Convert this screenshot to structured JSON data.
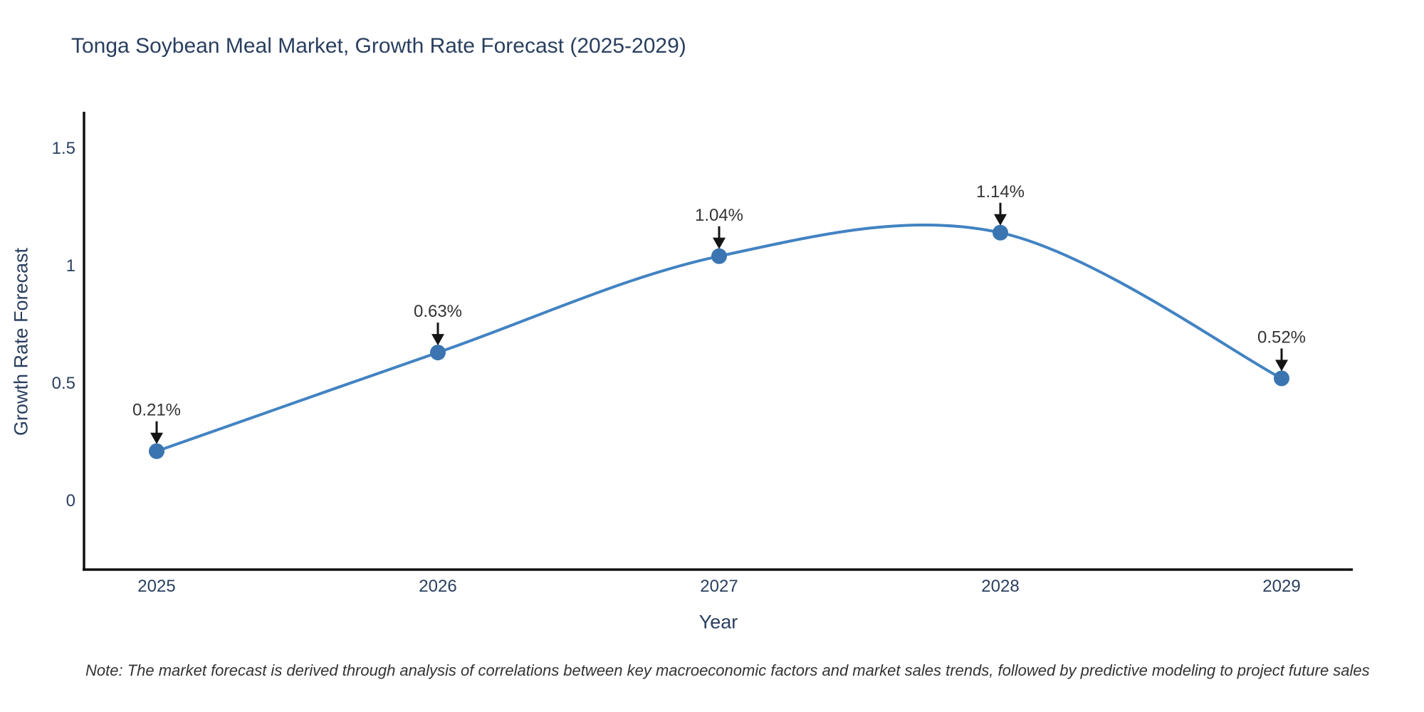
{
  "chart": {
    "title": "Tonga Soybean Meal Market, Growth Rate Forecast (2025-2029)",
    "x_label": "Year",
    "y_label": "Growth Rate Forecast",
    "note": "Note: The market forecast is derived through analysis of correlations between key macroeconomic factors and market sales trends, followed by predictive modeling to project future sales",
    "colors": {
      "line": "#4283c2",
      "marker": "#3a75b1",
      "axis": "#111111",
      "text": "#2a3f5f",
      "annotation_text": "#333333",
      "arrow": "#151515",
      "background": "#ffffff"
    }
  },
  "chart_data": {
    "type": "line",
    "title": "Tonga Soybean Meal Market, Growth Rate Forecast (2025-2029)",
    "xlabel": "Year",
    "ylabel": "Growth Rate Forecast",
    "x": [
      2025,
      2026,
      2027,
      2028,
      2029
    ],
    "values": [
      0.21,
      0.63,
      1.04,
      1.14,
      0.52
    ],
    "point_labels": [
      "0.21%",
      "0.63%",
      "1.04%",
      "1.14%",
      "0.52%"
    ],
    "yticks": [
      0,
      0.5,
      1,
      1.5
    ],
    "ylim": [
      -0.29,
      1.65
    ],
    "line_shape": "spline",
    "markers": true,
    "grid": false,
    "legend_position": "none",
    "annotations_style": "value label with black down-arrow above each point"
  }
}
